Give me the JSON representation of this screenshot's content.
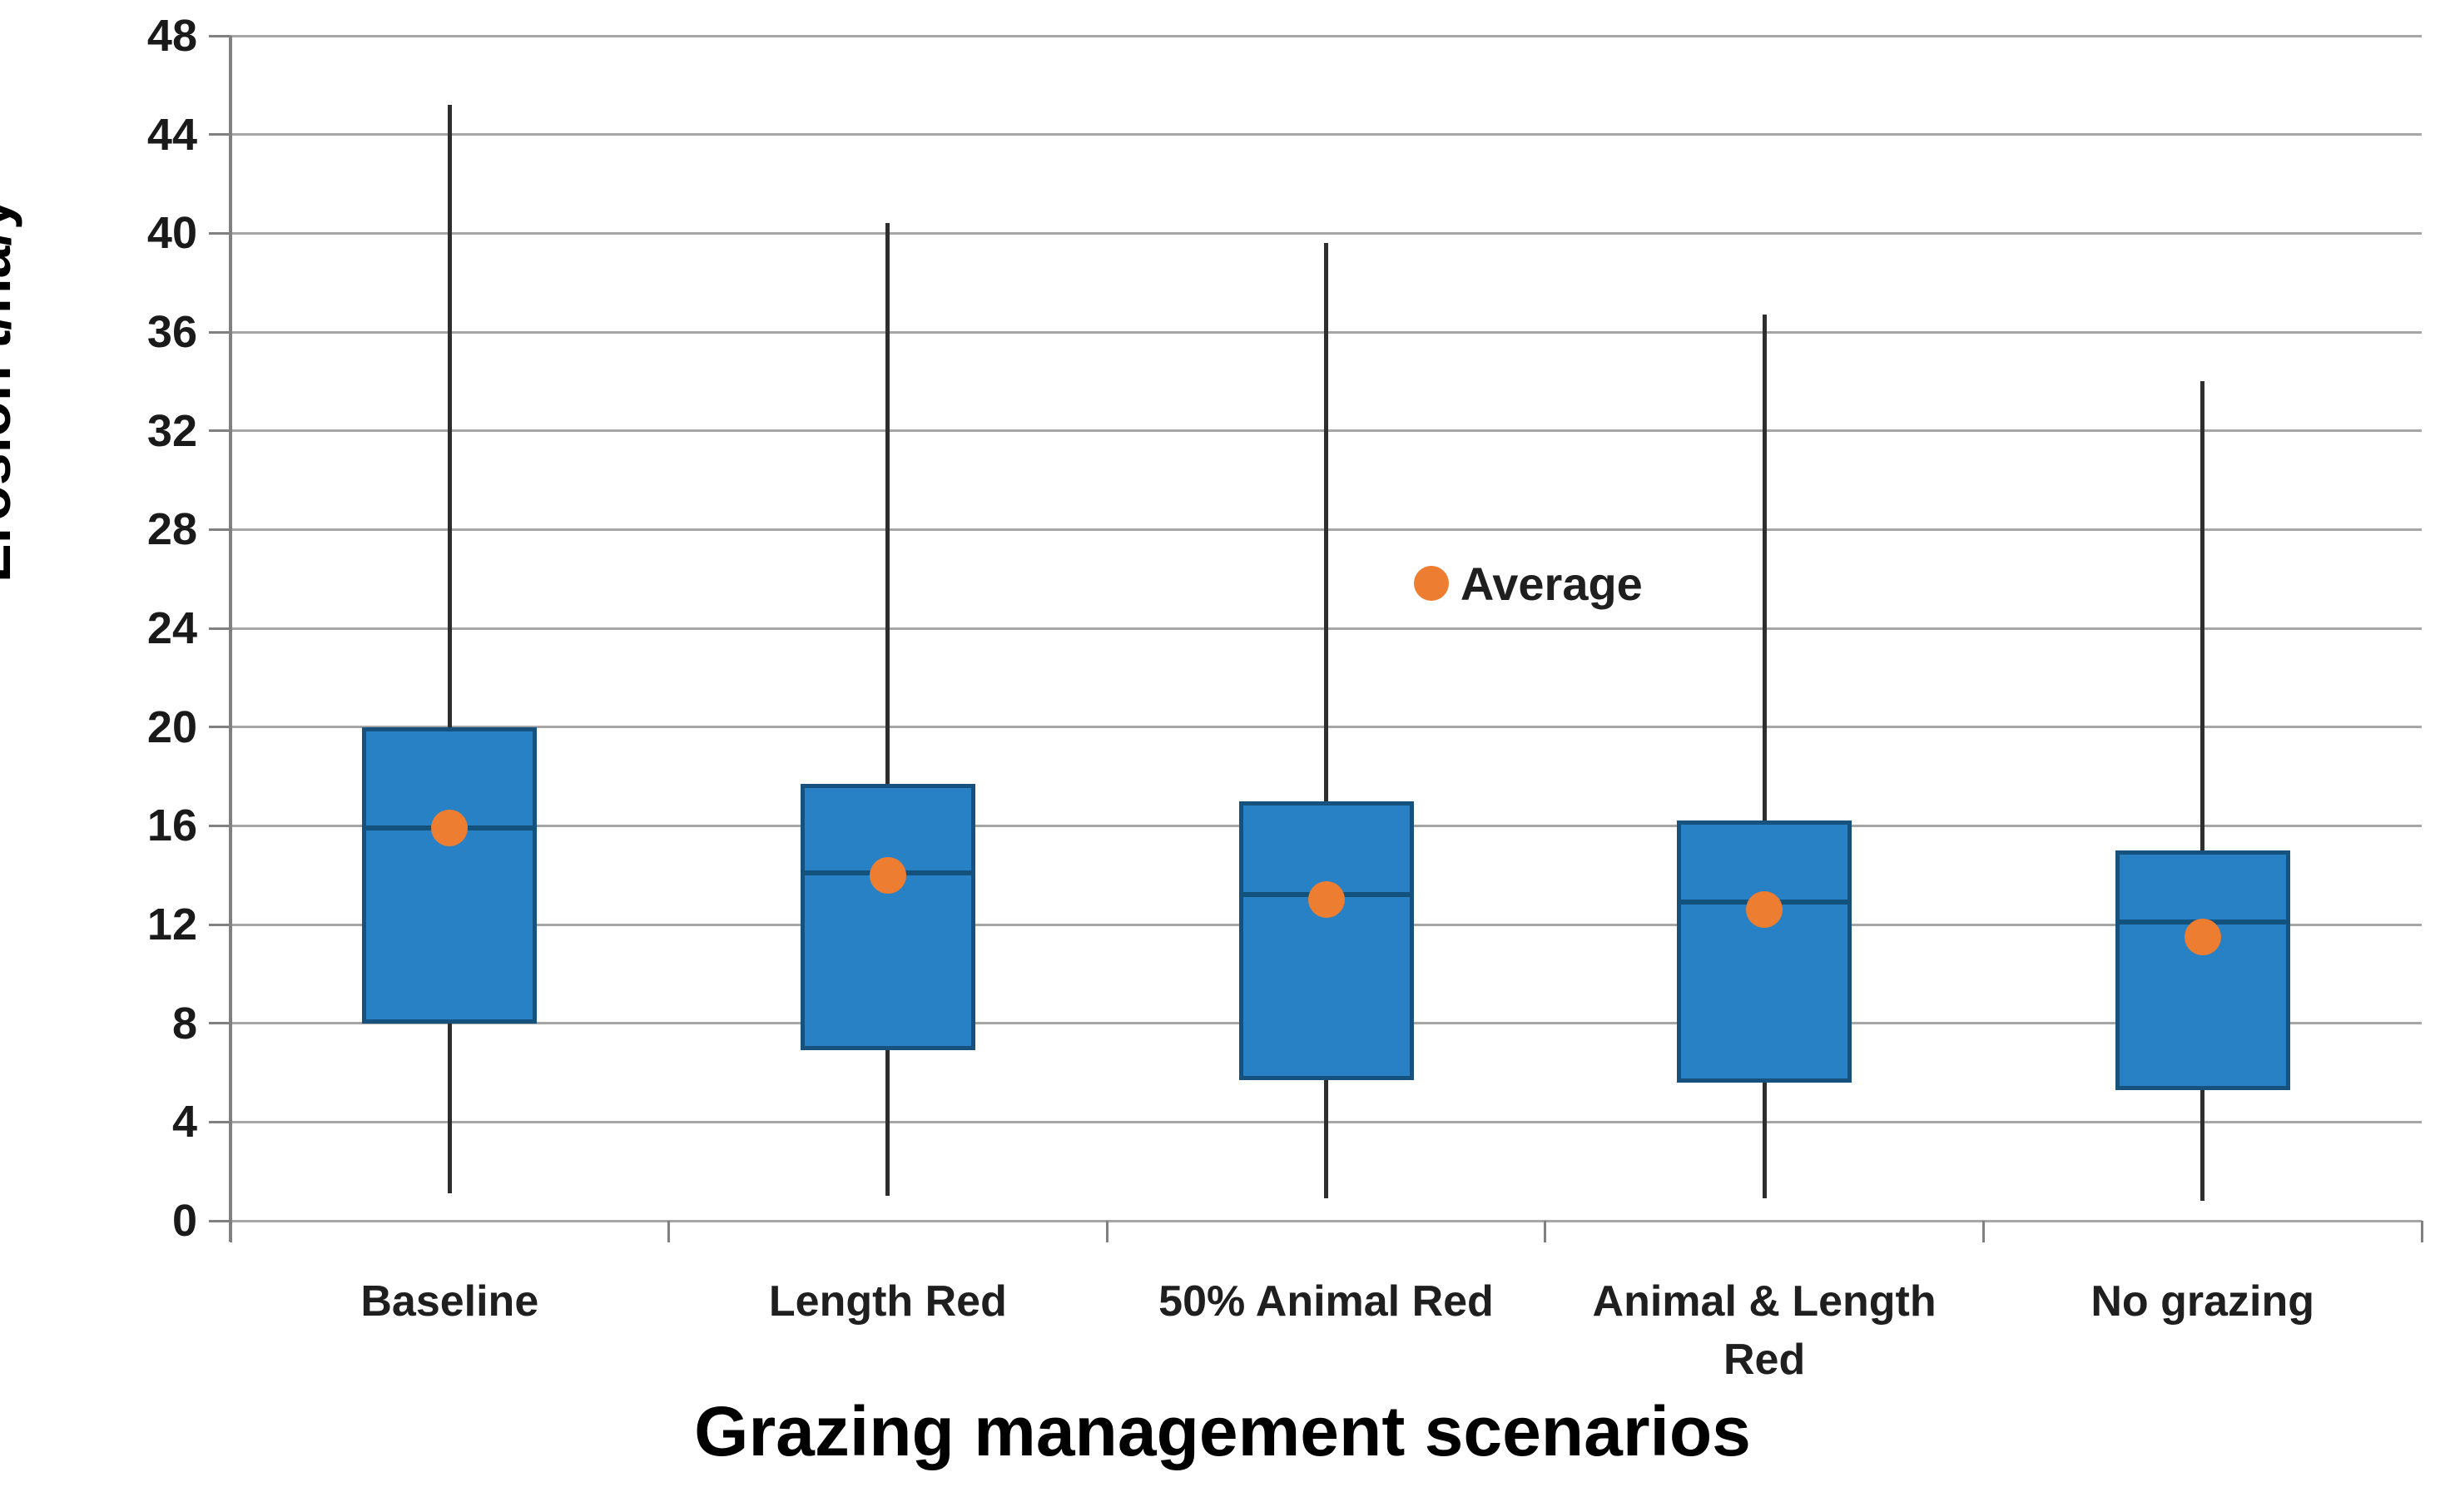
{
  "chart_data": {
    "type": "boxplot",
    "ylabel": "Erosion t/ha/y",
    "xlabel": "Grazing management scenarios",
    "ylim": [
      0,
      48
    ],
    "yticks": [
      0,
      4,
      8,
      12,
      16,
      20,
      24,
      28,
      32,
      36,
      40,
      44,
      48
    ],
    "categories": [
      "Baseline",
      "Length Red",
      "50% Animal Red",
      "Animal & Length Red",
      "No grazing"
    ],
    "series": [
      {
        "category": "Baseline",
        "whisker_low": 1.1,
        "q1": 8.0,
        "median": 15.9,
        "q3": 20.0,
        "whisker_high": 45.2,
        "mean": 15.9
      },
      {
        "category": "Length Red",
        "whisker_low": 1.0,
        "q1": 6.9,
        "median": 14.1,
        "q3": 17.7,
        "whisker_high": 40.4,
        "mean": 14.0
      },
      {
        "category": "50% Animal Red",
        "whisker_low": 0.9,
        "q1": 5.7,
        "median": 13.2,
        "q3": 17.0,
        "whisker_high": 39.6,
        "mean": 13.0
      },
      {
        "category": "Animal & Length Red",
        "whisker_low": 0.9,
        "q1": 5.6,
        "median": 12.9,
        "q3": 16.2,
        "whisker_high": 36.7,
        "mean": 12.6
      },
      {
        "category": "No grazing",
        "whisker_low": 0.8,
        "q1": 5.3,
        "median": 12.1,
        "q3": 15.0,
        "whisker_high": 34.0,
        "mean": 11.5
      }
    ],
    "legend": {
      "label": "Average"
    },
    "legend_position": {
      "x_frac": 0.548,
      "y_value": 25.9
    },
    "grid": "horizontal",
    "colors": {
      "box_fill": "#2881c4",
      "box_border": "#17527f",
      "median": "#14527e",
      "whisker": "#2e2e2e",
      "mean_marker": "#ed7d31",
      "gridline": "#a6a6a6",
      "axis": "#808080",
      "text": "#1f1f1f"
    }
  }
}
